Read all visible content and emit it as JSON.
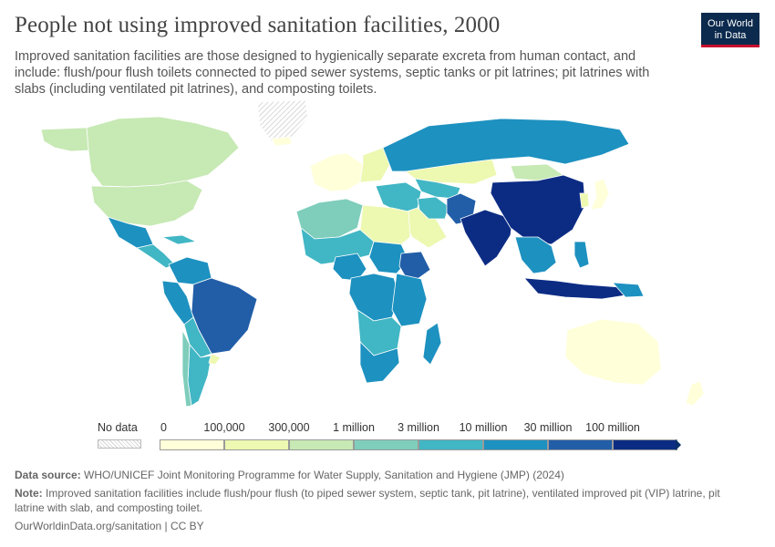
{
  "title": "People not using improved sanitation facilities, 2000",
  "subtitle": "Improved sanitation facilities are those designed to hygienically separate excreta from human contact, and include: flush/pour flush toilets connected to piped sewer systems, septic tanks or pit latrines; pit latrines with slabs (including ventilated pit latrines), and composting toilets.",
  "logo": {
    "line1": "Our World",
    "line2": "in Data",
    "bg_color": "#0c2a4d",
    "accent_color": "#c8102e"
  },
  "legend": {
    "no_data_label": "No data",
    "bins": [
      {
        "label": "0",
        "color": "#ffffd9"
      },
      {
        "label": "100,000",
        "color": "#edf8b1"
      },
      {
        "label": "300,000",
        "color": "#c7e9b4"
      },
      {
        "label": "1 million",
        "color": "#7fcdbb"
      },
      {
        "label": "3 million",
        "color": "#41b6c4"
      },
      {
        "label": "10 million",
        "color": "#1d91c0"
      },
      {
        "label": "30 million",
        "color": "#225ea8"
      },
      {
        "label": "100 million",
        "color": "#0c2c84"
      }
    ]
  },
  "footer": {
    "source_label": "Data source:",
    "source_text": "WHO/UNICEF Joint Monitoring Programme for Water Supply, Sanitation and Hygiene (JMP) (2024)",
    "note_label": "Note:",
    "note_text": "Improved sanitation facilities include flush/pour flush (to piped sewer system, septic tank, pit latrine), ventilated improved pit (VIP) latrine, pit latrine with slab, and composting toilet.",
    "url": "OurWorldinData.org/sanitation | CC BY"
  },
  "chart_data": {
    "type": "choropleth",
    "year": 2000,
    "scale_thresholds": [
      0,
      100000,
      300000,
      1000000,
      3000000,
      10000000,
      30000000,
      100000000
    ],
    "regions": [
      {
        "name": "Canada",
        "bin": 2
      },
      {
        "name": "Alaska",
        "bin": 2
      },
      {
        "name": "United States",
        "bin": 2
      },
      {
        "name": "Greenland",
        "bin": -1
      },
      {
        "name": "Mexico",
        "bin": 5
      },
      {
        "name": "Central America",
        "bin": 4
      },
      {
        "name": "Caribbean",
        "bin": 4
      },
      {
        "name": "Colombia / Venezuela",
        "bin": 5
      },
      {
        "name": "Peru / Ecuador",
        "bin": 5
      },
      {
        "name": "Brazil",
        "bin": 6
      },
      {
        "name": "Bolivia / Paraguay",
        "bin": 4
      },
      {
        "name": "Argentina",
        "bin": 4
      },
      {
        "name": "Chile",
        "bin": 3
      },
      {
        "name": "Uruguay",
        "bin": 1
      },
      {
        "name": "Iceland",
        "bin": 0
      },
      {
        "name": "Western Europe",
        "bin": 0
      },
      {
        "name": "Eastern Europe",
        "bin": 1
      },
      {
        "name": "Russia",
        "bin": 5
      },
      {
        "name": "Kazakhstan",
        "bin": 1
      },
      {
        "name": "Mongolia",
        "bin": 2
      },
      {
        "name": "Central Asia",
        "bin": 4
      },
      {
        "name": "Turkey / Middle East",
        "bin": 4
      },
      {
        "name": "Arabian Peninsula",
        "bin": 1
      },
      {
        "name": "Iran",
        "bin": 4
      },
      {
        "name": "Afghanistan / Pakistan",
        "bin": 6
      },
      {
        "name": "India",
        "bin": 7
      },
      {
        "name": "China",
        "bin": 7
      },
      {
        "name": "Japan",
        "bin": 0
      },
      {
        "name": "Korea",
        "bin": 1
      },
      {
        "name": "Southeast Asia mainland",
        "bin": 5
      },
      {
        "name": "Philippines",
        "bin": 5
      },
      {
        "name": "Indonesia",
        "bin": 7
      },
      {
        "name": "Papua New Guinea",
        "bin": 5
      },
      {
        "name": "Australia",
        "bin": 0
      },
      {
        "name": "New Zealand",
        "bin": 0
      },
      {
        "name": "North Africa (Morocco/Algeria)",
        "bin": 3
      },
      {
        "name": "Libya / Egypt",
        "bin": 1
      },
      {
        "name": "Sahel",
        "bin": 4
      },
      {
        "name": "Nigeria",
        "bin": 5
      },
      {
        "name": "Sudan",
        "bin": 5
      },
      {
        "name": "Ethiopia",
        "bin": 6
      },
      {
        "name": "Central Africa",
        "bin": 5
      },
      {
        "name": "East Africa",
        "bin": 5
      },
      {
        "name": "Southern Africa",
        "bin": 4
      },
      {
        "name": "South Africa",
        "bin": 5
      },
      {
        "name": "Madagascar",
        "bin": 5
      }
    ]
  }
}
